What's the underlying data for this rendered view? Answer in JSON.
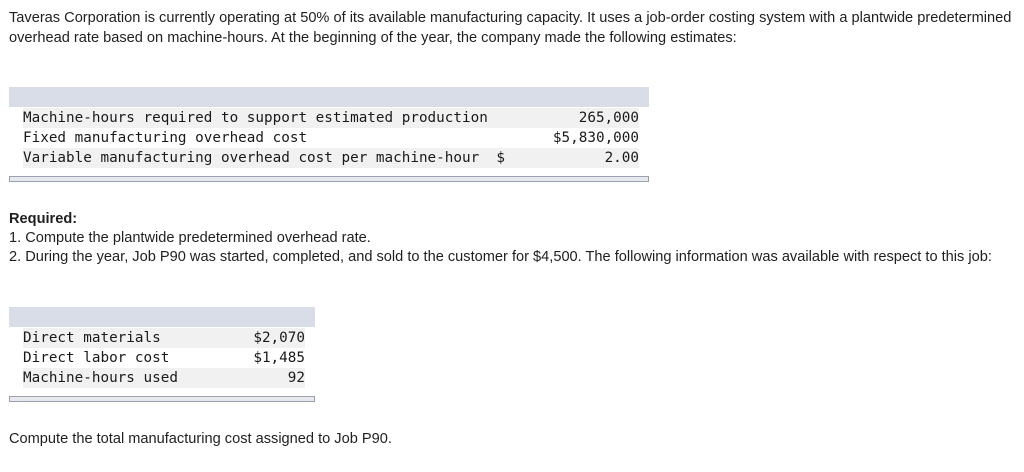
{
  "intro": "Taveras Corporation is currently operating at 50% of its available manufacturing capacity. It uses a job-order costing system with a plantwide predetermined overhead rate based on machine-hours. At the beginning of the year, the company made the following estimates:",
  "estimates_table": {
    "rows": [
      {
        "label": "Machine-hours required to support estimated production",
        "value": "265,000"
      },
      {
        "label": "Fixed manufacturing overhead cost",
        "value": "$5,830,000"
      },
      {
        "label": "Variable manufacturing overhead cost per machine-hour",
        "currency": "$",
        "value": "2.00"
      }
    ]
  },
  "required": {
    "heading": "Required:",
    "item1": "1. Compute the plantwide predetermined overhead rate.",
    "item2": "2. During the year, Job P90 was started, completed, and sold to the customer for $4,500. The following information was available with respect to this job:"
  },
  "job_table": {
    "rows": [
      {
        "label": "Direct materials",
        "value": "$2,070"
      },
      {
        "label": "Direct labor cost",
        "value": "$1,485"
      },
      {
        "label": "Machine-hours used",
        "value": "92"
      }
    ]
  },
  "final_question": "Compute the total manufacturing cost assigned to Job P90."
}
